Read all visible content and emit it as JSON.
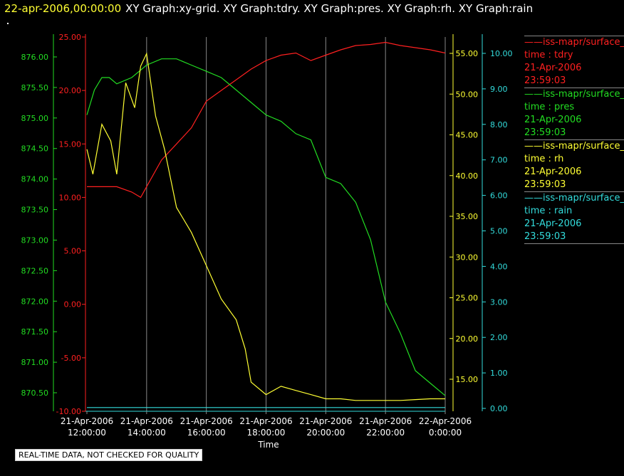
{
  "header": {
    "date": "22-apr-2006,00:00:00",
    "titles": "XY Graph:xy-grid.  XY Graph:tdry.  XY Graph:pres.  XY Graph:rh.  XY Graph:rain"
  },
  "disclaimer": "REAL-TIME DATA, NOT CHECKED FOR QUALITY",
  "legend": [
    {
      "name": "iss-mapr/surface_",
      "var": "time : tdry",
      "date": "21-Apr-2006",
      "time": "23:59:03",
      "color": "#ff2020"
    },
    {
      "name": "iss-mapr/surface_",
      "var": "time : pres",
      "date": "21-Apr-2006",
      "time": "23:59:03",
      "color": "#22dd22"
    },
    {
      "name": "iss-mapr/surface_",
      "var": "time : rh",
      "date": "21-Apr-2006",
      "time": "23:59:03",
      "color": "#ffff33"
    },
    {
      "name": "iss-mapr/surface_",
      "var": "time : rain",
      "date": "21-Apr-2006",
      "time": "23:59:03",
      "color": "#33dddd"
    }
  ],
  "chart_data": {
    "type": "line",
    "xlabel": "Time",
    "x_tick_labels": [
      [
        "21-Apr-2006",
        "12:00:00"
      ],
      [
        "21-Apr-2006",
        "14:00:00"
      ],
      [
        "21-Apr-2006",
        "16:00:00"
      ],
      [
        "21-Apr-2006",
        "18:00:00"
      ],
      [
        "21-Apr-2006",
        "20:00:00"
      ],
      [
        "21-Apr-2006",
        "22:00:00"
      ],
      [
        "22-Apr-2006",
        "0:00:00"
      ]
    ],
    "xlim_hours": [
      12,
      24
    ],
    "grid": true,
    "axes": {
      "tdry": {
        "color": "#ff2020",
        "ticks": [
          "25.00",
          "20.00",
          "15.00",
          "10.00",
          "5.00",
          "0.00",
          "-5.00",
          "-10.00"
        ],
        "lim": [
          -10,
          25
        ]
      },
      "pres": {
        "color": "#22dd22",
        "ticks": [
          "876.00",
          "875.50",
          "875.00",
          "874.50",
          "874.00",
          "873.50",
          "873.00",
          "872.50",
          "872.00",
          "871.50",
          "871.00",
          "870.50"
        ],
        "lim": [
          870.25,
          876.25
        ]
      },
      "rh": {
        "color": "#ffff33",
        "ticks": [
          "55.00",
          "50.00",
          "45.00",
          "40.00",
          "35.00",
          "30.00",
          "25.00",
          "20.00",
          "15.00"
        ],
        "lim": [
          11.5,
          56.5
        ]
      },
      "rain": {
        "color": "#33dddd",
        "ticks": [
          "10.00",
          "9.00",
          "8.00",
          "7.00",
          "6.00",
          "5.00",
          "4.00",
          "3.00",
          "2.00",
          "1.00",
          "0.00"
        ],
        "lim": [
          -0.1,
          10.1
        ]
      }
    },
    "series": [
      {
        "name": "tdry",
        "axis": "tdry",
        "x": [
          12,
          12.5,
          13,
          13.5,
          13.8,
          14,
          14.5,
          15,
          15.5,
          16,
          16.5,
          17,
          17.5,
          18,
          18.5,
          19,
          19.5,
          20,
          20.5,
          21,
          21.5,
          22,
          22.5,
          23,
          23.5,
          24
        ],
        "y": [
          11.0,
          11.0,
          11.0,
          10.5,
          10.0,
          11.0,
          13.5,
          15.0,
          16.5,
          19.0,
          20.0,
          21.0,
          22.0,
          22.8,
          23.3,
          23.5,
          22.8,
          23.3,
          23.8,
          24.2,
          24.3,
          24.5,
          24.2,
          24.0,
          23.8,
          23.5
        ]
      },
      {
        "name": "pres",
        "axis": "pres",
        "x": [
          12,
          12.25,
          12.5,
          12.75,
          13,
          13.5,
          14,
          14.5,
          15,
          15.5,
          16,
          16.5,
          17,
          17.5,
          18,
          18.5,
          19,
          19.5,
          20,
          20.5,
          21,
          21.5,
          22,
          22.5,
          23,
          23.5,
          24
        ],
        "y": [
          875.0,
          875.4,
          875.6,
          875.6,
          875.5,
          875.6,
          875.8,
          875.9,
          875.9,
          875.8,
          875.7,
          875.6,
          875.4,
          875.2,
          875.0,
          874.9,
          874.7,
          874.6,
          874.0,
          873.9,
          873.6,
          873.0,
          872.0,
          871.5,
          870.9,
          870.7,
          870.5
        ]
      },
      {
        "name": "rh",
        "axis": "rh",
        "x": [
          12,
          12.2,
          12.5,
          12.8,
          13,
          13.3,
          13.6,
          13.8,
          14,
          14.3,
          14.6,
          15,
          15.5,
          16,
          16.5,
          17,
          17.3,
          17.5,
          18,
          18.5,
          19,
          19.5,
          20,
          20.5,
          21,
          21.5,
          22,
          22.5,
          23,
          23.5,
          24
        ],
        "y": [
          43.0,
          40.0,
          46.0,
          44.0,
          40.0,
          51.0,
          48.0,
          53.0,
          54.5,
          47.0,
          43.0,
          36.0,
          33.0,
          29.0,
          25.0,
          22.5,
          19.0,
          15.0,
          13.5,
          14.5,
          14.0,
          13.5,
          13.0,
          13.0,
          12.8,
          12.8,
          12.8,
          12.8,
          12.9,
          13.0,
          13.0
        ]
      },
      {
        "name": "rain",
        "axis": "rain",
        "x": [
          12,
          24
        ],
        "y": [
          0,
          0
        ]
      }
    ]
  }
}
